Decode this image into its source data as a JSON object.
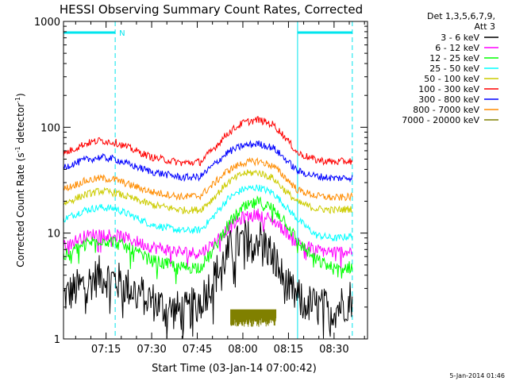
{
  "chart_data": {
    "type": "line",
    "title": "HESSI Observing Summary Count Rates, Corrected",
    "xlabel": "Start Time (03-Jan-14 07:00:42)",
    "ylabel_main": "Corrected Count Rate (s",
    "ylabel_sup1": "-1",
    "ylabel_mid": " detector",
    "ylabel_sup2": "-1",
    "ylabel_end": ")",
    "y_scale": "log",
    "ylim": [
      1,
      1000
    ],
    "xlim_minutes": [
      1,
      101
    ],
    "x_ticks": [
      {
        "m": 15,
        "label": "07:15"
      },
      {
        "m": 30,
        "label": "07:30"
      },
      {
        "m": 45,
        "label": "07:45"
      },
      {
        "m": 60,
        "label": "08:00"
      },
      {
        "m": 75,
        "label": "08:15"
      },
      {
        "m": 90,
        "label": "08:30"
      }
    ],
    "y_ticks": [
      {
        "v": 1,
        "label": "1"
      },
      {
        "v": 10,
        "label": "10"
      },
      {
        "v": 100,
        "label": "100"
      },
      {
        "v": 1000,
        "label": "1000"
      }
    ],
    "legend_header_1": "Det 1,3,5,6,7,9,",
    "legend_header_2": "Att 3",
    "legend_position": "right",
    "night_marker_label": "N",
    "night_intervals_minutes": [
      [
        1,
        18
      ],
      [
        78,
        96
      ]
    ],
    "timestamp": "5-Jan-2014 01:46",
    "series": [
      {
        "name": "3 - 6 keV",
        "color": "#000000",
        "profile": [
          [
            1,
            2.5
          ],
          [
            8,
            3.3
          ],
          [
            13,
            4.0
          ],
          [
            18,
            3.6
          ],
          [
            23,
            3.0
          ],
          [
            28,
            2.5
          ],
          [
            35,
            1.9
          ],
          [
            42,
            1.8
          ],
          [
            48,
            2.8
          ],
          [
            52,
            4.5
          ],
          [
            56,
            7.0
          ],
          [
            62,
            9.3
          ],
          [
            66,
            8.8
          ],
          [
            70,
            6.0
          ],
          [
            74,
            3.2
          ],
          [
            78,
            2.4
          ],
          [
            84,
            2.0
          ],
          [
            90,
            1.9
          ],
          [
            96,
            2.5
          ]
        ]
      },
      {
        "name": "6 - 12 keV",
        "color": "#ff00ff",
        "profile": [
          [
            1,
            7.5
          ],
          [
            8,
            9.3
          ],
          [
            13,
            10.0
          ],
          [
            18,
            9.6
          ],
          [
            23,
            8.7
          ],
          [
            30,
            7.4
          ],
          [
            40,
            6.6
          ],
          [
            46,
            6.5
          ],
          [
            50,
            7.8
          ],
          [
            55,
            11.0
          ],
          [
            60,
            14.0
          ],
          [
            65,
            15.0
          ],
          [
            70,
            13.2
          ],
          [
            74,
            10.5
          ],
          [
            78,
            8.2
          ],
          [
            84,
            6.9
          ],
          [
            90,
            6.6
          ],
          [
            96,
            6.8
          ]
        ]
      },
      {
        "name": "12 - 25 keV",
        "color": "#00ff00",
        "profile": [
          [
            1,
            6.0
          ],
          [
            8,
            7.9
          ],
          [
            13,
            8.7
          ],
          [
            18,
            8.2
          ],
          [
            23,
            7.0
          ],
          [
            30,
            5.5
          ],
          [
            40,
            4.7
          ],
          [
            46,
            4.8
          ],
          [
            50,
            6.6
          ],
          [
            55,
            12.0
          ],
          [
            60,
            17.0
          ],
          [
            65,
            19.5
          ],
          [
            70,
            17.0
          ],
          [
            74,
            13.0
          ],
          [
            78,
            8.3
          ],
          [
            84,
            5.6
          ],
          [
            90,
            4.6
          ],
          [
            96,
            4.8
          ]
        ]
      },
      {
        "name": "25 - 50 keV",
        "color": "#00ffff",
        "profile": [
          [
            1,
            13.5
          ],
          [
            8,
            16.5
          ],
          [
            13,
            17.5
          ],
          [
            18,
            17.0
          ],
          [
            23,
            14.8
          ],
          [
            30,
            12.0
          ],
          [
            40,
            10.5
          ],
          [
            46,
            10.7
          ],
          [
            50,
            14.0
          ],
          [
            55,
            21.0
          ],
          [
            60,
            26.0
          ],
          [
            65,
            27.0
          ],
          [
            70,
            24.0
          ],
          [
            74,
            18.0
          ],
          [
            78,
            13.5
          ],
          [
            84,
            9.6
          ],
          [
            90,
            8.9
          ],
          [
            96,
            9.4
          ]
        ]
      },
      {
        "name": "50 - 100 keV",
        "color": "#cccc00",
        "profile": [
          [
            1,
            19.0
          ],
          [
            8,
            23.0
          ],
          [
            13,
            25.0
          ],
          [
            18,
            24.0
          ],
          [
            23,
            21.5
          ],
          [
            30,
            18.5
          ],
          [
            40,
            16.5
          ],
          [
            46,
            16.6
          ],
          [
            50,
            21.0
          ],
          [
            55,
            30.0
          ],
          [
            60,
            36.5
          ],
          [
            65,
            37.5
          ],
          [
            70,
            33.0
          ],
          [
            74,
            25.0
          ],
          [
            78,
            19.5
          ],
          [
            84,
            17.0
          ],
          [
            90,
            16.5
          ],
          [
            96,
            17.0
          ]
        ]
      },
      {
        "name": "100 - 300 keV",
        "color": "#ff0000",
        "profile": [
          [
            1,
            56.0
          ],
          [
            8,
            70.0
          ],
          [
            13,
            75.0
          ],
          [
            18,
            72.0
          ],
          [
            23,
            63.0
          ],
          [
            30,
            52.0
          ],
          [
            40,
            46.0
          ],
          [
            46,
            47.0
          ],
          [
            50,
            61.0
          ],
          [
            55,
            88.0
          ],
          [
            60,
            110.0
          ],
          [
            65,
            118.0
          ],
          [
            70,
            106.0
          ],
          [
            74,
            80.0
          ],
          [
            78,
            57.0
          ],
          [
            84,
            49.0
          ],
          [
            90,
            47.0
          ],
          [
            96,
            48.0
          ]
        ]
      },
      {
        "name": "300 - 800 keV",
        "color": "#0000ff",
        "profile": [
          [
            1,
            42.0
          ],
          [
            8,
            49.0
          ],
          [
            13,
            52.0
          ],
          [
            18,
            50.0
          ],
          [
            23,
            44.0
          ],
          [
            30,
            38.0
          ],
          [
            40,
            33.5
          ],
          [
            46,
            34.0
          ],
          [
            50,
            43.0
          ],
          [
            55,
            58.0
          ],
          [
            60,
            67.0
          ],
          [
            65,
            70.0
          ],
          [
            70,
            64.0
          ],
          [
            74,
            50.0
          ],
          [
            78,
            38.5
          ],
          [
            84,
            34.5
          ],
          [
            90,
            33.0
          ],
          [
            96,
            33.5
          ]
        ]
      },
      {
        "name": "800 - 7000 keV",
        "color": "#ff8c00",
        "profile": [
          [
            1,
            26.0
          ],
          [
            8,
            31.0
          ],
          [
            13,
            33.0
          ],
          [
            18,
            32.0
          ],
          [
            23,
            28.5
          ],
          [
            30,
            24.5
          ],
          [
            40,
            22.0
          ],
          [
            46,
            22.5
          ],
          [
            50,
            28.5
          ],
          [
            55,
            39.0
          ],
          [
            60,
            46.0
          ],
          [
            65,
            48.0
          ],
          [
            70,
            43.0
          ],
          [
            74,
            33.5
          ],
          [
            78,
            25.5
          ],
          [
            84,
            22.5
          ],
          [
            90,
            21.5
          ],
          [
            96,
            22.0
          ]
        ]
      },
      {
        "name": "7000 - 20000 keV",
        "color": "#808000",
        "profile": [
          [
            56,
            1.9
          ],
          [
            71,
            1.9
          ]
        ]
      }
    ]
  }
}
